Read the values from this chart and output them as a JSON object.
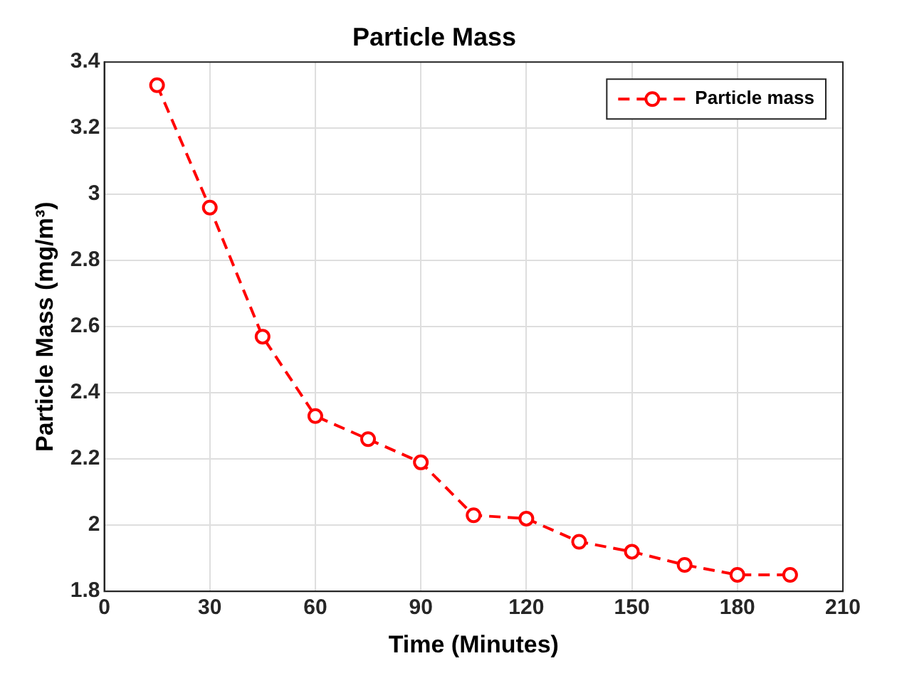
{
  "chart_data": {
    "type": "line",
    "title": "Particle Mass",
    "xlabel": "Time (Minutes)",
    "ylabel": "Particle Mass (mg/m³)",
    "x": [
      15,
      30,
      45,
      60,
      75,
      90,
      105,
      120,
      135,
      150,
      165,
      180,
      195
    ],
    "series": [
      {
        "name": "Particle mass",
        "color": "#ff0000",
        "values": [
          3.33,
          2.96,
          2.57,
          2.33,
          2.26,
          2.19,
          2.03,
          2.02,
          1.95,
          1.92,
          1.88,
          1.85,
          1.85
        ]
      }
    ],
    "xlim": [
      0,
      210
    ],
    "xticks": [
      0,
      30,
      60,
      90,
      120,
      150,
      180,
      210
    ],
    "ylim": [
      1.8,
      3.4
    ],
    "yticks": [
      1.8,
      2,
      2.2,
      2.4,
      2.6,
      2.8,
      3,
      3.2,
      3.4
    ],
    "grid": true,
    "legend": "top right",
    "marker": "circle",
    "line_style": "dashed"
  }
}
